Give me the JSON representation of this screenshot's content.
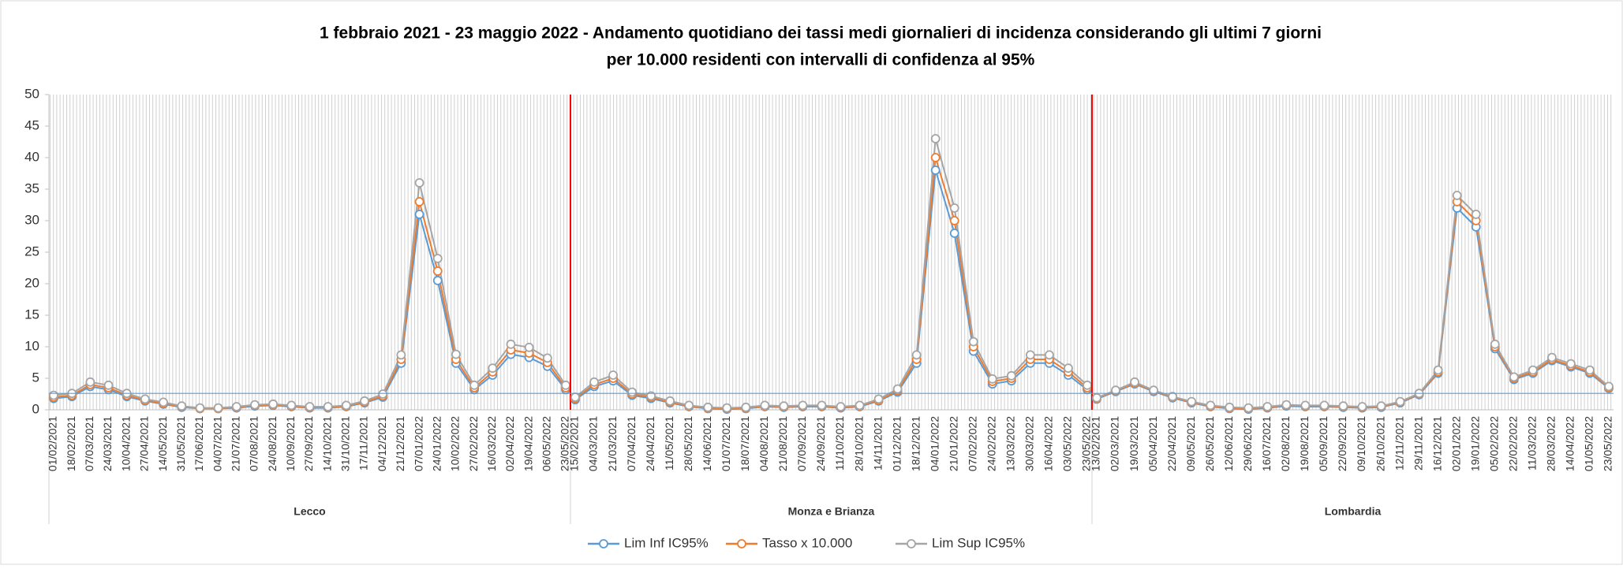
{
  "chart_data": {
    "type": "line",
    "title": [
      "1 febbraio 2021 - 23 maggio 2022 - Andamento quotidiano  dei tassi medi giornalieri di incidenza considerando  gli ultimi 7 giorni",
      "per 10.000 residenti con intervalli di confidenza  al 95%"
    ],
    "ylim": [
      0,
      50
    ],
    "yticks": [
      0,
      5,
      10,
      15,
      20,
      25,
      30,
      35,
      40,
      45,
      50
    ],
    "reference_line": 2.6,
    "reference_color": "#5b9bd5",
    "separator_color": "#ff0000",
    "groups": [
      {
        "label": "Lecco",
        "categories": [
          "01/02/2021",
          "18/02/2021",
          "07/03/2021",
          "24/03/2021",
          "10/04/2021",
          "27/04/2021",
          "14/05/2021",
          "31/05/2021",
          "17/06/2021",
          "04/07/2021",
          "21/07/2021",
          "07/08/2021",
          "24/08/2021",
          "10/09/2021",
          "27/09/2021",
          "14/10/2021",
          "31/10/2021",
          "17/11/2021",
          "04/12/2021",
          "21/12/2021",
          "07/01/2022",
          "24/01/2022",
          "10/02/2022",
          "27/02/2022",
          "16/03/2022",
          "02/04/2022",
          "19/04/2022",
          "06/05/2022",
          "23/05/2022"
        ]
      },
      {
        "label": "Monza e Brianza",
        "categories": [
          "15/02/2021",
          "04/03/2021",
          "21/03/2021",
          "07/04/2021",
          "24/04/2021",
          "11/05/2021",
          "28/05/2021",
          "14/06/2021",
          "01/07/2021",
          "18/07/2021",
          "04/08/2021",
          "21/08/2021",
          "07/09/2021",
          "24/09/2021",
          "11/10/2021",
          "28/10/2021",
          "14/11/2021",
          "01/12/2021",
          "18/12/2021",
          "04/01/2022",
          "21/01/2022",
          "07/02/2022",
          "24/02/2022",
          "13/03/2022",
          "30/03/2022",
          "16/04/2022",
          "03/05/2022",
          "23/05/2022"
        ]
      },
      {
        "label": "Lombardia",
        "categories": [
          "13/02/2021",
          "02/03/2021",
          "19/03/2021",
          "05/04/2021",
          "22/04/2021",
          "09/05/2021",
          "26/05/2021",
          "12/06/2021",
          "29/06/2021",
          "16/07/2021",
          "02/08/2021",
          "19/08/2021",
          "05/09/2021",
          "22/09/2021",
          "09/10/2021",
          "26/10/2021",
          "12/11/2021",
          "29/11/2021",
          "16/12/2021",
          "02/01/2022",
          "19/01/2022",
          "05/02/2022",
          "22/02/2022",
          "11/03/2022",
          "28/03/2022",
          "14/04/2022",
          "01/05/2022",
          "23/05/2022"
        ]
      }
    ],
    "series": [
      {
        "name": "Lim Inf IC95%",
        "color": "#5b9bd5",
        "values": [
          [
            1.8,
            2.1,
            3.7,
            3.2,
            2.1,
            1.4,
            0.9,
            0.4,
            0.2,
            0.2,
            0.3,
            0.6,
            0.7,
            0.5,
            0.3,
            0.3,
            0.5,
            1.1,
            2.0,
            7.4,
            31,
            20.5,
            7.4,
            3.2,
            5.5,
            8.8,
            8.3,
            6.9,
            3.2
          ],
          [
            1.6,
            3.7,
            4.6,
            2.3,
            1.8,
            1.1,
            0.5,
            0.2,
            0.1,
            0.2,
            0.5,
            0.4,
            0.5,
            0.5,
            0.3,
            0.5,
            1.4,
            2.8,
            7.4,
            38,
            28,
            9.3,
            4.1,
            4.6,
            7.4,
            7.4,
            5.5,
            3.2
          ],
          [
            1.7,
            2.9,
            4.1,
            2.9,
            1.9,
            1.1,
            0.5,
            0.2,
            0.1,
            0.3,
            0.6,
            0.5,
            0.5,
            0.4,
            0.3,
            0.4,
            1.1,
            2.4,
            5.8,
            32,
            29,
            9.7,
            4.8,
            5.8,
            7.8,
            6.8,
            5.8,
            3.4
          ]
        ]
      },
      {
        "name": "Tasso x 10.000",
        "color": "#ed7d31",
        "values": [
          [
            2,
            2.3,
            4,
            3.5,
            2.3,
            1.5,
            1,
            0.5,
            0.2,
            0.2,
            0.4,
            0.7,
            0.8,
            0.6,
            0.4,
            0.4,
            0.6,
            1.2,
            2.2,
            8,
            33,
            22,
            8,
            3.5,
            6,
            9.5,
            9,
            7.5,
            3.5
          ],
          [
            1.8,
            4,
            5,
            2.5,
            2,
            1.2,
            0.6,
            0.3,
            0.2,
            0.3,
            0.6,
            0.5,
            0.6,
            0.6,
            0.4,
            0.6,
            1.5,
            3,
            8,
            40,
            30,
            10,
            4.5,
            5,
            8,
            8,
            6,
            3.5
          ],
          [
            1.8,
            3,
            4.2,
            3,
            2,
            1.2,
            0.6,
            0.3,
            0.2,
            0.4,
            0.7,
            0.6,
            0.6,
            0.5,
            0.4,
            0.5,
            1.2,
            2.5,
            6,
            33,
            30,
            10,
            5,
            6,
            8,
            7,
            6,
            3.5
          ]
        ]
      },
      {
        "name": "Lim Sup IC95%",
        "color": "#a5a5a5",
        "values": [
          [
            2.3,
            2.6,
            4.4,
            3.9,
            2.6,
            1.7,
            1.2,
            0.6,
            0.3,
            0.3,
            0.5,
            0.8,
            0.9,
            0.7,
            0.5,
            0.5,
            0.7,
            1.4,
            2.5,
            8.7,
            36,
            24,
            8.8,
            3.9,
            6.6,
            10.4,
            9.9,
            8.2,
            3.9
          ],
          [
            2,
            4.4,
            5.5,
            2.8,
            2.2,
            1.4,
            0.7,
            0.4,
            0.3,
            0.4,
            0.7,
            0.6,
            0.7,
            0.7,
            0.5,
            0.7,
            1.7,
            3.3,
            8.7,
            43,
            32,
            10.8,
            4.9,
            5.4,
            8.7,
            8.7,
            6.6,
            3.9
          ],
          [
            1.9,
            3.1,
            4.4,
            3.1,
            2.1,
            1.3,
            0.7,
            0.4,
            0.3,
            0.5,
            0.8,
            0.7,
            0.7,
            0.6,
            0.5,
            0.6,
            1.3,
            2.6,
            6.3,
            34,
            31,
            10.4,
            5.2,
            6.3,
            8.3,
            7.3,
            6.3,
            3.7
          ]
        ]
      }
    ]
  }
}
